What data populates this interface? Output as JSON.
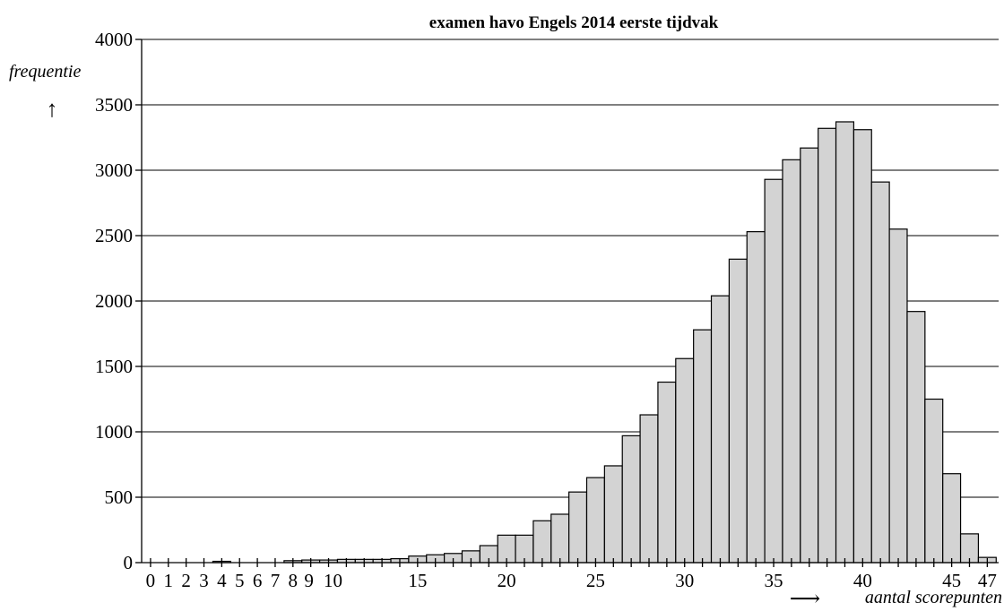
{
  "chart_data": {
    "type": "bar",
    "title": "examen havo Engels 2014 eerste tijdvak",
    "xlabel": "aantal scorepunten",
    "ylabel": "frequentie",
    "ylim": [
      0,
      4000
    ],
    "yticks": [
      0,
      500,
      1000,
      1500,
      2000,
      2500,
      3000,
      3500,
      4000
    ],
    "xtick_labels": [
      "0",
      "1",
      "2",
      "3",
      "4",
      "5",
      "6",
      "7",
      "8",
      "9",
      "10",
      "15",
      "20",
      "25",
      "30",
      "35",
      "40",
      "45",
      "47"
    ],
    "grid": true,
    "x": [
      0,
      1,
      2,
      3,
      4,
      5,
      6,
      7,
      8,
      9,
      10,
      11,
      12,
      13,
      14,
      15,
      16,
      17,
      18,
      19,
      20,
      21,
      22,
      23,
      24,
      25,
      26,
      27,
      28,
      29,
      30,
      31,
      32,
      33,
      34,
      35,
      36,
      37,
      38,
      39,
      40,
      41,
      42,
      43,
      44,
      45,
      46,
      47
    ],
    "values": [
      0,
      0,
      0,
      0,
      10,
      0,
      0,
      0,
      15,
      20,
      20,
      25,
      25,
      25,
      30,
      50,
      60,
      70,
      90,
      130,
      210,
      210,
      320,
      370,
      540,
      650,
      740,
      970,
      1130,
      1380,
      1560,
      1780,
      2040,
      2320,
      2530,
      2930,
      3080,
      3170,
      3320,
      3370,
      3310,
      2910,
      2550,
      1920,
      1250,
      680,
      220,
      40
    ],
    "arrows": {
      "y": "↑",
      "x": "⟶"
    }
  }
}
